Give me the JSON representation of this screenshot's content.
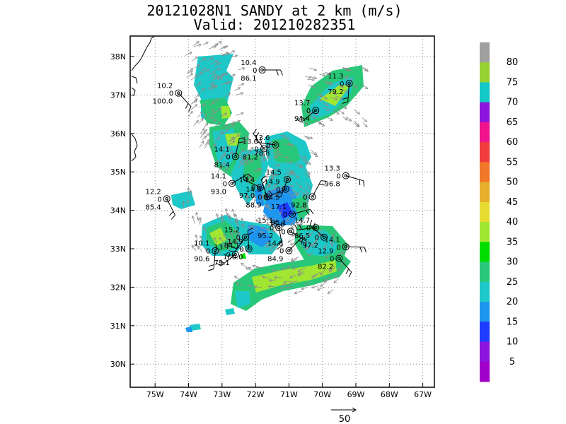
{
  "title": "20121028N1 SANDY at 2 km (m/s)",
  "subtitle": "Valid: 201210282351",
  "map": {
    "lat_ticks": [
      "38N",
      "37N",
      "36N",
      "35N",
      "34N",
      "33N",
      "32N",
      "31N",
      "30N"
    ],
    "lon_ticks": [
      "75W",
      "74W",
      "73W",
      "72W",
      "71W",
      "70W",
      "69W",
      "68W",
      "67W"
    ],
    "lon_range": [
      -75.75,
      -66.4
    ],
    "lat_range": [
      29.45,
      38.6
    ]
  },
  "colorbar": {
    "labels": [
      "80",
      "75",
      "70",
      "65",
      "60",
      "55",
      "50",
      "45",
      "40",
      "35",
      "30",
      "25",
      "20",
      "15",
      "10",
      "5"
    ],
    "colors": [
      "#a0a0a0",
      "#96d232",
      "#14c8c8",
      "#8c14dc",
      "#f0148c",
      "#f03c3c",
      "#f07828",
      "#e6af2d",
      "#e6dc32",
      "#a0e632",
      "#00dc00",
      "#28c878",
      "#1ec8c8",
      "#1e96f0",
      "#1e3cff",
      "#8c14dc",
      "#a000c8"
    ]
  },
  "scale_vector": {
    "label": "50"
  },
  "stations": [
    {
      "lon": -71.8,
      "lat": 37.65,
      "top": "10.4",
      "mid": "0",
      "bot": "86.1"
    },
    {
      "lon": -74.3,
      "lat": 37.05,
      "top": "10.2",
      "mid": "0",
      "bot": "100.0"
    },
    {
      "lon": -69.2,
      "lat": 37.3,
      "top": "11.3",
      "mid": "0",
      "bot": "79.2"
    },
    {
      "lon": -70.2,
      "lat": 36.6,
      "top": "13.7",
      "mid": "0",
      "bot": "94.4"
    },
    {
      "lon": -71.4,
      "lat": 35.7,
      "top": "13.6",
      "mid": "0",
      "bot": "78.8"
    },
    {
      "lon": -71.75,
      "lat": 35.6,
      "top": "13.6",
      "mid": "0",
      "bot": "81.2"
    },
    {
      "lon": -72.6,
      "lat": 35.4,
      "top": "14.1",
      "mid": "0",
      "bot": "81.4"
    },
    {
      "lon": -72.7,
      "lat": 34.7,
      "top": "14.1",
      "mid": "0",
      "bot": "93.0"
    },
    {
      "lon": -69.3,
      "lat": 34.9,
      "top": "13.3",
      "mid": "0",
      "bot": "96.8"
    },
    {
      "lon": -74.65,
      "lat": 34.3,
      "top": "12.2",
      "mid": "0",
      "bot": "85.4"
    },
    {
      "lon": -71.05,
      "lat": 34.8,
      "top": "14.5",
      "mid": "",
      "bot": ""
    },
    {
      "lon": -71.1,
      "lat": 34.55,
      "top": "14.9",
      "mid": "0",
      "bot": "84.5"
    },
    {
      "lon": -71.85,
      "lat": 34.6,
      "top": "14.4",
      "mid": "0",
      "bot": "97.0"
    },
    {
      "lon": -71.65,
      "lat": 34.35,
      "top": "14.6",
      "mid": "0",
      "bot": "88.9"
    },
    {
      "lon": -70.3,
      "lat": 34.35,
      "top": "",
      "mid": "0",
      "bot": "92.8"
    },
    {
      "lon": -70.9,
      "lat": 33.9,
      "top": "17.1",
      "mid": "0",
      "bot": "95.1"
    },
    {
      "lon": -70.95,
      "lat": 33.45,
      "top": "15.6",
      "mid": "0",
      "bot": ""
    },
    {
      "lon": -71.3,
      "lat": 33.55,
      "top": "15.1",
      "mid": "0",
      "bot": "95.2"
    },
    {
      "lon": -72.3,
      "lat": 33.3,
      "top": "15.2",
      "mid": "0",
      "bot": "84.1"
    },
    {
      "lon": -70.2,
      "lat": 33.55,
      "top": "14.7",
      "mid": "0",
      "bot": "86.5"
    },
    {
      "lon": -69.95,
      "lat": 33.3,
      "top": "",
      "mid": "0",
      "bot": "97.2"
    },
    {
      "lon": -72.2,
      "lat": 33.0,
      "top": "14.9",
      "mid": "0",
      "bot": "100.0"
    },
    {
      "lon": -71.0,
      "lat": 32.95,
      "top": "14.8",
      "mid": "0",
      "bot": "84.9"
    },
    {
      "lon": -69.3,
      "lat": 33.05,
      "top": "14.1",
      "mid": "0",
      "bot": ""
    },
    {
      "lon": -69.5,
      "lat": 32.75,
      "top": "12.9",
      "mid": "0",
      "bot": "82.2"
    },
    {
      "lon": -73.2,
      "lat": 32.95,
      "top": "10.1",
      "mid": "0",
      "bot": "90.6"
    },
    {
      "lon": -72.6,
      "lat": 32.85,
      "top": "13.7",
      "mid": "0",
      "bot": "79.1"
    }
  ]
}
